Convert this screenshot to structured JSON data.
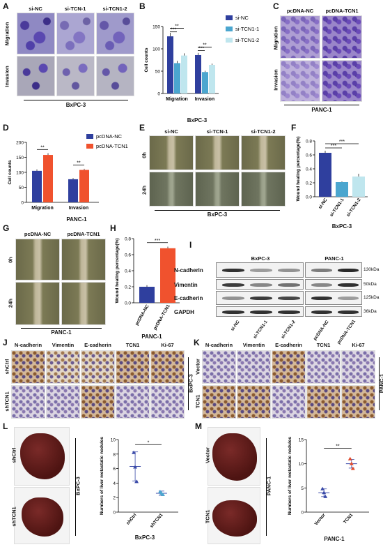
{
  "panels": {
    "A": {
      "letter": "A",
      "columns": [
        "si-NC",
        "si-TCN-1",
        "si-TCN1-2"
      ],
      "rows": [
        "Migration",
        "Invasion"
      ],
      "caption": "BxPC-3"
    },
    "B": {
      "letter": "B",
      "caption": "BxPC-3"
    },
    "C": {
      "letter": "C",
      "columns": [
        "pcDNA-NC",
        "pcDNA-TCN1"
      ],
      "rows": [
        "Migration",
        "Invasion"
      ],
      "caption": "PANC-1"
    },
    "D": {
      "letter": "D",
      "caption": "PANC-1"
    },
    "E": {
      "letter": "E",
      "columns": [
        "si-NC",
        "si-TCN-1",
        "si-TCN1-2"
      ],
      "rows": [
        "0h",
        "24h"
      ],
      "caption": "BxPC-3"
    },
    "F": {
      "letter": "F",
      "caption": "BxPC-3"
    },
    "G": {
      "letter": "G",
      "columns": [
        "pcDNA-NC",
        "pcDNA-TCN1"
      ],
      "rows": [
        "0h",
        "24h"
      ],
      "caption": "PANC-1"
    },
    "H": {
      "letter": "H",
      "caption": "PANC-1"
    },
    "I": {
      "letter": "I",
      "groups": [
        "BxPC-3",
        "PANC-1"
      ],
      "proteins": [
        "N-cadherin",
        "Vimentin",
        "E-cadherin",
        "GAPDH"
      ],
      "sizes": [
        "130kDa",
        "50kDa",
        "125kDa",
        "36kDa"
      ],
      "lanes": [
        "si-NC",
        "si-TCN1-1",
        "si-TCN1-2",
        "pcDNA-NC",
        "pcDNA-TCN1"
      ]
    },
    "J": {
      "letter": "J",
      "columns": [
        "N-cadherin",
        "Vimentin",
        "E-cadherin",
        "TCN1",
        "Ki-67"
      ],
      "rows": [
        "shCtrl",
        "shTCN1"
      ],
      "side": "BxPC-3"
    },
    "K": {
      "letter": "K",
      "columns": [
        "N-cadherin",
        "Vimentin",
        "E-cadherin",
        "TCN1",
        "Ki-67"
      ],
      "rows": [
        "Vector",
        "TCN1"
      ],
      "side": "PANC-1"
    },
    "L": {
      "letter": "L",
      "rows": [
        "shCtrl",
        "shTCN1"
      ],
      "side": "BxPC-3",
      "caption": "BxPC-3"
    },
    "M": {
      "letter": "M",
      "rows": [
        "Vector",
        "TCN1"
      ],
      "side": "PANC-1",
      "caption": "PANC-1"
    }
  },
  "colors": {
    "dark_blue": "#2f3f9e",
    "mid_blue": "#4ba6cf",
    "light_blue": "#bfe6ee",
    "orange": "#f0522e"
  },
  "chart_data": [
    {
      "id": "B",
      "type": "bar",
      "categories": [
        "Migration",
        "Invasion"
      ],
      "series": [
        {
          "name": "si-NC",
          "values": [
            128,
            86
          ],
          "errors": [
            8,
            5
          ]
        },
        {
          "name": "si-TCN1-1",
          "values": [
            68,
            48
          ],
          "errors": [
            5,
            3
          ]
        },
        {
          "name": "si-TCN1-2",
          "values": [
            85,
            64
          ],
          "errors": [
            5,
            3
          ]
        }
      ],
      "ylabel": "Cell counts",
      "ylim": [
        0,
        150
      ],
      "yticks": [
        0,
        50,
        100,
        150
      ],
      "significance": [
        "***",
        "**",
        "***",
        "**"
      ],
      "legend": "top-right"
    },
    {
      "id": "D",
      "type": "bar",
      "categories": [
        "Migration",
        "Invasion"
      ],
      "series": [
        {
          "name": "pcDNA-NC",
          "values": [
            105,
            77
          ],
          "errors": [
            5,
            4
          ]
        },
        {
          "name": "pcDNA-TCN1",
          "values": [
            158,
            108
          ],
          "errors": [
            6,
            4
          ]
        }
      ],
      "ylabel": "Cell counts",
      "ylim": [
        0,
        200
      ],
      "yticks": [
        0,
        50,
        100,
        150,
        200
      ],
      "significance": [
        "**",
        "**"
      ],
      "legend": "top-right"
    },
    {
      "id": "F",
      "type": "bar",
      "categories": [
        "si-NC",
        "si-TCN1-1",
        "si-TCN1-2"
      ],
      "values": [
        0.63,
        0.21,
        0.29
      ],
      "errors": [
        0.03,
        0.01,
        0.04
      ],
      "ylabel": "Wound healing percentage(%)",
      "ylim": [
        0,
        0.8
      ],
      "yticks": [
        0.0,
        0.2,
        0.4,
        0.6,
        0.8
      ],
      "significance": [
        "***",
        "***"
      ]
    },
    {
      "id": "H",
      "type": "bar",
      "categories": [
        "pcDNA-NC",
        "pcDNA-TCN1"
      ],
      "values": [
        0.2,
        0.68
      ],
      "errors": [
        0.02,
        0.02
      ],
      "ylabel": "Wound healing percentage(%)",
      "ylim": [
        0,
        0.8
      ],
      "yticks": [
        0.0,
        0.2,
        0.4,
        0.6,
        0.8
      ],
      "significance": [
        "***"
      ]
    },
    {
      "id": "L",
      "type": "scatter",
      "categories": [
        "shCtrl",
        "shTCN1"
      ],
      "points": [
        [
          8.2,
          6.2,
          4.2
        ],
        [
          2.8,
          2.6,
          2.4
        ]
      ],
      "means": [
        6.3,
        2.6
      ],
      "sd": [
        2.0,
        0.3
      ],
      "ylabel": "Numbers of liver metastatic nodules",
      "ylim": [
        0,
        10
      ],
      "yticks": [
        0,
        2,
        4,
        6,
        8,
        10
      ],
      "significance": [
        "*"
      ]
    },
    {
      "id": "M",
      "type": "scatter",
      "categories": [
        "Vector",
        "TCN1"
      ],
      "points": [
        [
          4.8,
          4.0,
          3.2
        ],
        [
          11.0,
          10.0,
          9.0
        ]
      ],
      "means": [
        4.0,
        10.0
      ],
      "sd": [
        0.8,
        0.9
      ],
      "ylabel": "Numbers of liver metastatic nodules",
      "ylim": [
        0,
        15
      ],
      "yticks": [
        0,
        5,
        10,
        15
      ],
      "significance": [
        "**"
      ]
    }
  ]
}
